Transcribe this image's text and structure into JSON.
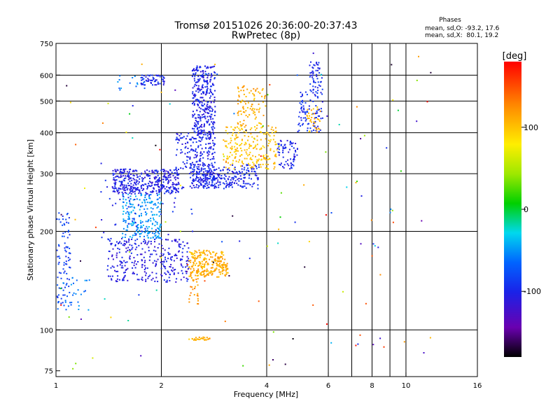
{
  "chart_data": {
    "type": "scatter",
    "title": "Tromsø 20151026 20:36:00-20:37:43",
    "subtitle": "RwPretec (8p)",
    "xlabel": "Frequency [MHz]",
    "ylabel": "Stationary phase Virtual Height [km]",
    "x_scale": "log",
    "y_scale": "log",
    "xlim": [
      1,
      16
    ],
    "ylim": [
      72,
      750
    ],
    "x_ticks": [
      1,
      2,
      4,
      6,
      8,
      10,
      16
    ],
    "x_tick_labels": [
      "1",
      "2",
      "4",
      "6",
      "8",
      "10",
      "16"
    ],
    "x_grid": [
      2,
      4,
      6,
      7,
      8,
      9,
      10
    ],
    "y_ticks": [
      75,
      100,
      200,
      300,
      400,
      500,
      600,
      750
    ],
    "y_tick_labels": [
      "75",
      "100",
      "200",
      "300",
      "400",
      "500",
      "600",
      "750"
    ],
    "y_grid": [
      100,
      200,
      300,
      400,
      500,
      600
    ],
    "grid": true,
    "stats": {
      "header": "Phases",
      "line_o": "mean, sd,O: -93.2, 17.6",
      "line_x": "mean, sd,X:  80.1, 19.2"
    },
    "colorbar": {
      "label": "[deg]",
      "ticks": [
        "100",
        "0",
        "-100"
      ],
      "tick_values": [
        100,
        0,
        -100
      ],
      "range": [
        -180,
        180
      ]
    },
    "clusters": [
      {
        "x": [
          2.45,
          2.85
        ],
        "y": [
          270,
          640
        ],
        "phase": -102,
        "n": 520
      },
      {
        "x": [
          1.45,
          2.25
        ],
        "y": [
          260,
          310
        ],
        "phase": -104,
        "n": 380
      },
      {
        "x": [
          2.4,
          3.8
        ],
        "y": [
          270,
          320
        ],
        "phase": -100,
        "n": 240
      },
      {
        "x": [
          1.4,
          2.4
        ],
        "y": [
          140,
          190
        ],
        "phase": -106,
        "n": 300
      },
      {
        "x": [
          1.55,
          2.0
        ],
        "y": [
          190,
          260
        ],
        "phase": -50,
        "n": 220
      },
      {
        "x": [
          1.0,
          1.1
        ],
        "y": [
          120,
          230
        ],
        "phase": -85,
        "n": 90
      },
      {
        "x": [
          1.0,
          1.25
        ],
        "y": [
          115,
          145
        ],
        "phase": -60,
        "n": 30
      },
      {
        "x": [
          2.4,
          3.1
        ],
        "y": [
          145,
          175
        ],
        "phase": 110,
        "n": 260
      },
      {
        "x": [
          2.4,
          2.55
        ],
        "y": [
          120,
          145
        ],
        "phase": 120,
        "n": 25
      },
      {
        "x": [
          2.4,
          2.75
        ],
        "y": [
          93,
          95
        ],
        "phase": 110,
        "n": 30
      },
      {
        "x": [
          3.0,
          4.3
        ],
        "y": [
          310,
          420
        ],
        "phase": 100,
        "n": 220
      },
      {
        "x": [
          3.3,
          4.0
        ],
        "y": [
          420,
          560
        ],
        "phase": 110,
        "n": 90
      },
      {
        "x": [
          4.3,
          4.9
        ],
        "y": [
          310,
          380
        ],
        "phase": -100,
        "n": 70
      },
      {
        "x": [
          4.9,
          5.8
        ],
        "y": [
          400,
          540
        ],
        "phase": -95,
        "n": 90
      },
      {
        "x": [
          5.3,
          5.8
        ],
        "y": [
          540,
          660
        ],
        "phase": -100,
        "n": 50
      },
      {
        "x": [
          5.2,
          5.7
        ],
        "y": [
          400,
          480
        ],
        "phase": 110,
        "n": 35
      },
      {
        "x": [
          1.75,
          2.05
        ],
        "y": [
          560,
          600
        ],
        "phase": -100,
        "n": 60
      },
      {
        "x": [
          1.45,
          1.8
        ],
        "y": [
          540,
          600
        ],
        "phase": -60,
        "n": 15
      },
      {
        "x": [
          1.3,
          2.5
        ],
        "y": [
          180,
          330
        ],
        "phase": -100,
        "n": 60
      },
      {
        "x": [
          2.2,
          2.45
        ],
        "y": [
          310,
          400
        ],
        "phase": -100,
        "n": 60
      },
      {
        "x": [
          1.0,
          12.0
        ],
        "y": [
          76,
          700
        ],
        "phase": 0,
        "n": 130,
        "random_phase": true
      }
    ]
  }
}
